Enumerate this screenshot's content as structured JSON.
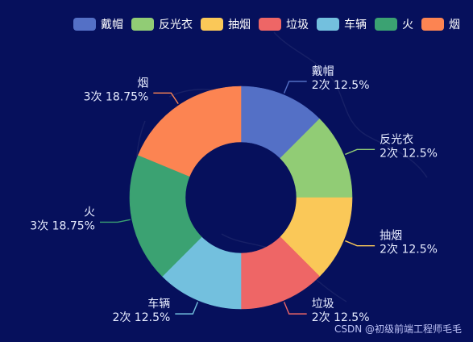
{
  "chart_data": {
    "type": "pie",
    "subtype": "donut",
    "categories": [
      "戴帽",
      "反光衣",
      "抽烟",
      "垃圾",
      "车辆",
      "火",
      "烟"
    ],
    "counts": [
      2,
      2,
      2,
      2,
      2,
      3,
      3
    ],
    "percentages": [
      "12.5%",
      "12.5%",
      "12.5%",
      "12.5%",
      "12.5%",
      "18.75%",
      "18.75%"
    ],
    "count_suffix": "次",
    "colors": [
      "#5470c6",
      "#91cc75",
      "#fac858",
      "#ee6666",
      "#73c0de",
      "#3ba272",
      "#fc8452"
    ],
    "legend_position": "top-right"
  },
  "watermark": "CSDN @初级前端工程师毛毛"
}
